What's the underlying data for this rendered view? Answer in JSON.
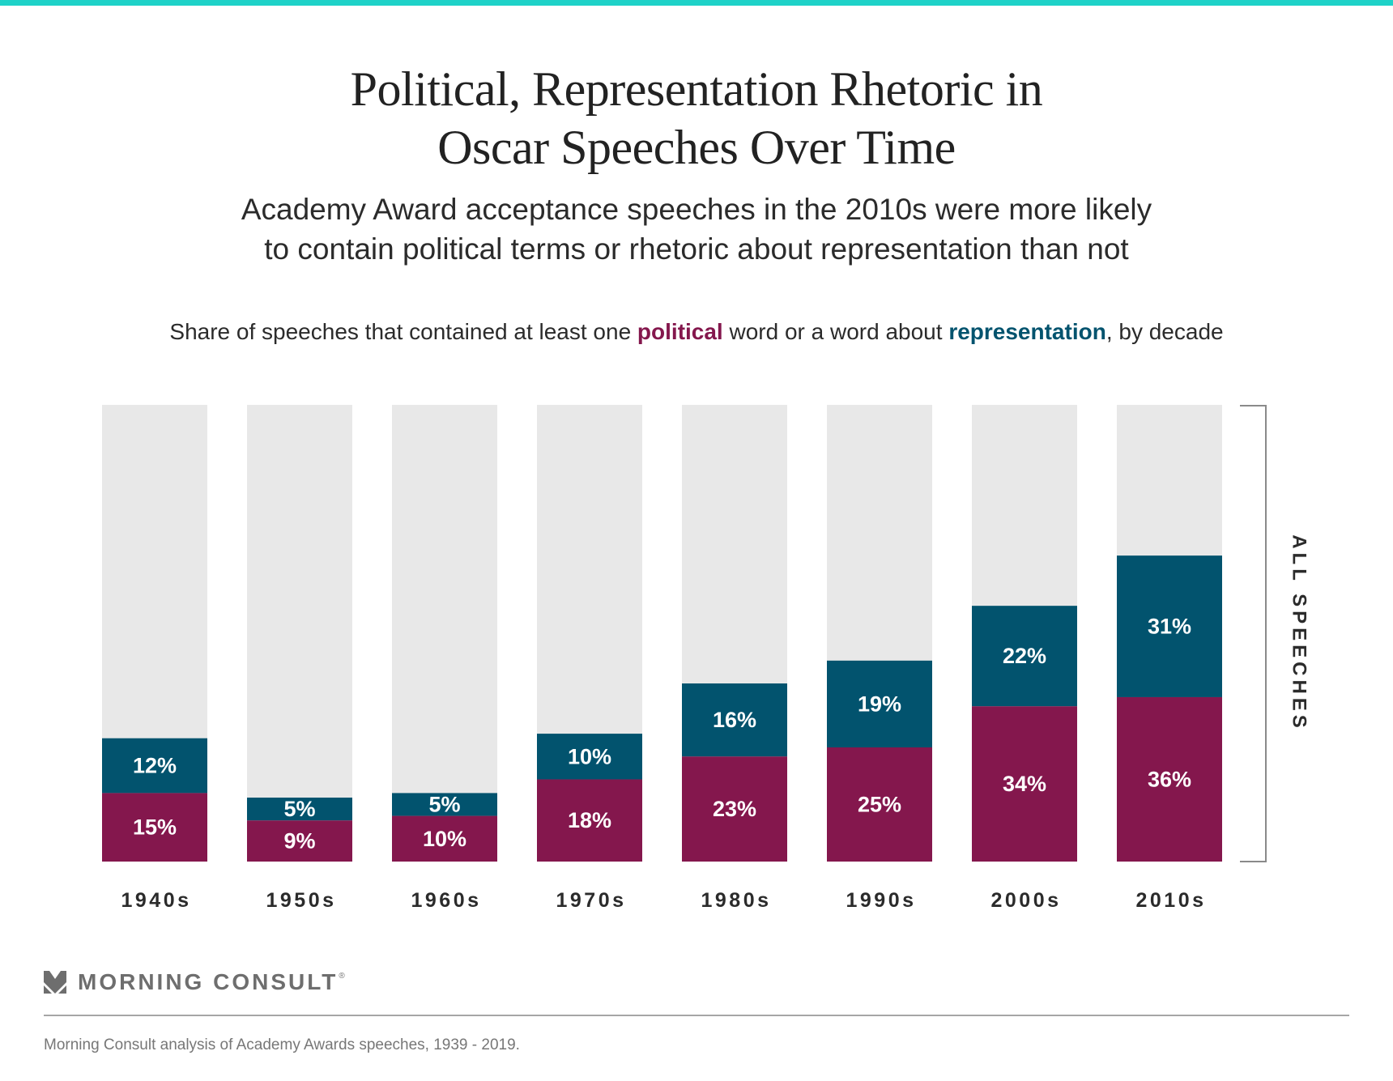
{
  "colors": {
    "accent_bar": "#1ed2c8",
    "political": "#84174d",
    "representation": "#02536e",
    "remainder": "#e8e8e8",
    "bracket": "#8a8a8a"
  },
  "header": {
    "title_line1": "Political, Representation Rhetoric in",
    "title_line2": "Oscar Speeches Over Time",
    "subtitle_line1": "Academy Award acceptance speeches in the 2010s were more likely",
    "subtitle_line2": "to contain political terms or rhetoric about representation than not"
  },
  "chart_description": {
    "part1": "Share of speeches that contained at least one ",
    "political_word": "political",
    "part2": " word or a word about ",
    "representation_word": "representation",
    "part3": ", by decade"
  },
  "chart_data": {
    "type": "bar",
    "stacked": true,
    "title": "Share of speeches that contained at least one political word or a word about representation, by decade",
    "categories": [
      "1940s",
      "1950s",
      "1960s",
      "1970s",
      "1980s",
      "1990s",
      "2000s",
      "2010s"
    ],
    "series": [
      {
        "name": "political",
        "values": [
          15,
          9,
          10,
          18,
          23,
          25,
          34,
          36
        ]
      },
      {
        "name": "representation",
        "values": [
          12,
          5,
          5,
          10,
          16,
          19,
          22,
          31
        ]
      }
    ],
    "value_suffix": "%",
    "ylim": [
      0,
      100
    ],
    "xlabel": "",
    "ylabel": "",
    "grid": false,
    "bracket_label": "ALL SPEECHES"
  },
  "footer": {
    "logo_text": "MORNING CONSULT",
    "logo_reg": "®",
    "note": "Morning Consult analysis of Academy Awards speeches, 1939 - 2019."
  }
}
